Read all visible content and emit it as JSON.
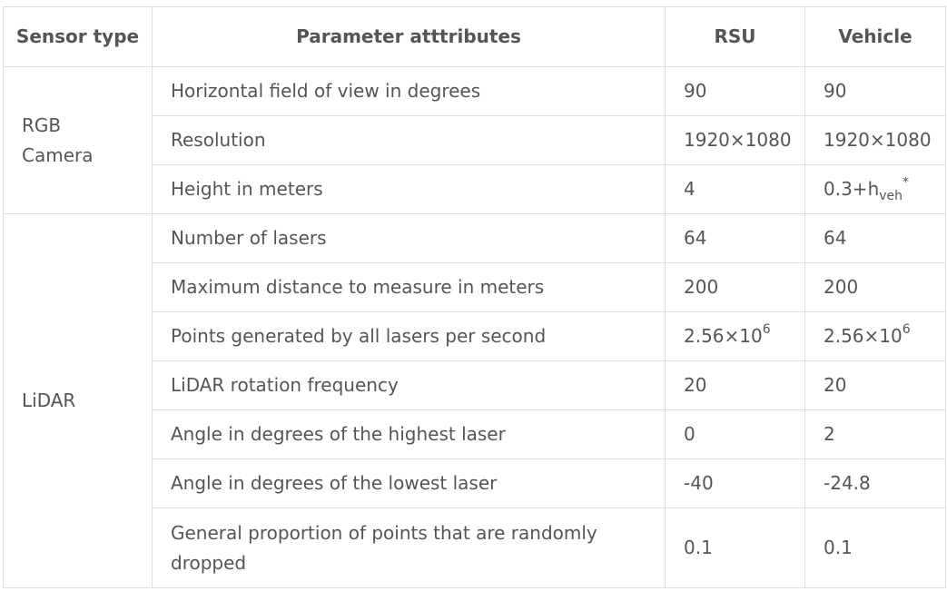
{
  "header": {
    "sensor_type": "Sensor type",
    "parameter": "Parameter atttributes",
    "rsu": "RSU",
    "vehicle": "Vehicle"
  },
  "groups": {
    "rgb": "RGB Camera",
    "lidar": "LiDAR"
  },
  "rows": [
    {
      "param": "Horizontal field of view in degrees",
      "rsu": "90",
      "vehicle": "90"
    },
    {
      "param": "Resolution",
      "rsu": "1920×1080",
      "vehicle": "1920×1080"
    },
    {
      "param": "Height in meters",
      "rsu": "4",
      "vehicle_base": "0.3+h",
      "vehicle_sub": "veh",
      "vehicle_sup": "*"
    },
    {
      "param": "Number of lasers",
      "rsu": "64",
      "vehicle": "64"
    },
    {
      "param": "Maximum distance to measure in meters",
      "rsu": "200",
      "vehicle": "200"
    },
    {
      "param": "Points generated by all lasers per second",
      "rsu_base": "2.56×10",
      "rsu_sup": "6",
      "vehicle_base": "2.56×10",
      "vehicle_sup": "6"
    },
    {
      "param": "LiDAR rotation frequency",
      "rsu": "20",
      "vehicle": "20"
    },
    {
      "param": "Angle in degrees of the highest laser",
      "rsu": "0",
      "vehicle": "2"
    },
    {
      "param": "Angle in degrees of the lowest laser",
      "rsu": "-40",
      "vehicle": "-24.8"
    },
    {
      "param": "General proportion of points that are randomly dropped",
      "rsu": "0.1",
      "vehicle": "0.1"
    }
  ]
}
